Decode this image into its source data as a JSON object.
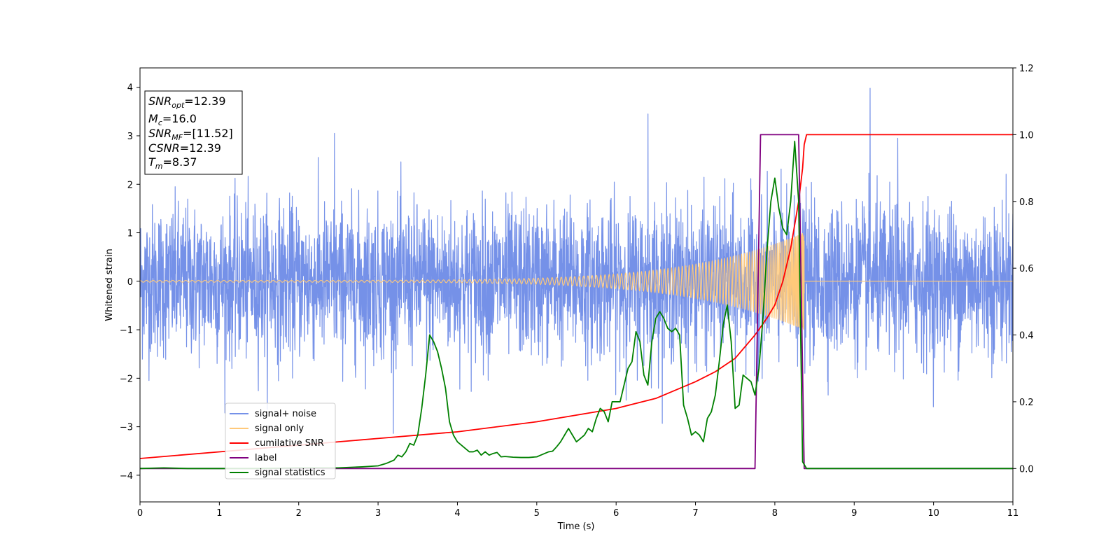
{
  "chart_data": {
    "type": "line",
    "xlabel": "Time (s)",
    "ylabel": "Whitened strain",
    "xlim": [
      0,
      11
    ],
    "ylim": [
      -4.55,
      4.4
    ],
    "y2lim": [
      -0.1,
      1.2
    ],
    "x_ticks": [
      "0",
      "1",
      "2",
      "3",
      "4",
      "5",
      "6",
      "7",
      "8",
      "9",
      "10",
      "11"
    ],
    "y_ticks": [
      "4",
      "3",
      "2",
      "1",
      "0",
      "−1",
      "−2",
      "−3",
      "−4"
    ],
    "y_tick_values": [
      4,
      3,
      2,
      1,
      0,
      -1,
      -2,
      -3,
      -4
    ],
    "y2_ticks": [
      "1.2",
      "1.0",
      "0.8",
      "0.6",
      "0.4",
      "0.2",
      "0.0"
    ],
    "y2_tick_values": [
      1.2,
      1.0,
      0.8,
      0.6,
      0.4,
      0.2,
      0.0
    ],
    "grid": false,
    "legend_position": "lower-left",
    "annotation": {
      "lines": [
        {
          "main": "SNR",
          "sub": "opt",
          "value": "=12.39"
        },
        {
          "main": "M",
          "sub": "c",
          "value": "=16.0"
        },
        {
          "main": "SNR",
          "sub": "MF",
          "value": "=[11.52]"
        },
        {
          "main": "CSNR",
          "sub": "",
          "value": "=12.39"
        },
        {
          "main": "T",
          "sub": "m",
          "value": "=8.37"
        }
      ]
    },
    "series": [
      {
        "name": "signal+ noise",
        "color": "#7591e8",
        "axis": "left",
        "kind": "noise",
        "noise_std": 0.78,
        "range": [
          0,
          11
        ],
        "note_peaks": [
          [
            9.2,
            3.98
          ],
          [
            6.4,
            3.45
          ],
          [
            9.55,
            2.95
          ],
          [
            2.45,
            3.05
          ]
        ]
      },
      {
        "name": "signal only",
        "color": "#ffc97a",
        "axis": "left",
        "kind": "chirp",
        "range": [
          0,
          8.37
        ],
        "amplitude_start": 0.02,
        "amplitude_end": 1.0
      },
      {
        "name": "cumilative SNR",
        "color": "#ff0000",
        "axis": "right",
        "x": [
          0,
          1,
          2,
          3,
          4,
          5,
          5.5,
          6,
          6.5,
          7,
          7.25,
          7.5,
          7.75,
          7.9,
          8.0,
          8.1,
          8.2,
          8.3,
          8.35,
          8.37,
          8.4,
          11
        ],
        "y": [
          0.03,
          0.05,
          0.07,
          0.09,
          0.11,
          0.14,
          0.16,
          0.18,
          0.21,
          0.26,
          0.29,
          0.33,
          0.4,
          0.45,
          0.49,
          0.56,
          0.66,
          0.8,
          0.9,
          0.97,
          1.0,
          1.0
        ]
      },
      {
        "name": "label",
        "color": "#800080",
        "axis": "right",
        "x": [
          0,
          7.75,
          7.82,
          8.3,
          8.37,
          11
        ],
        "y": [
          0.0,
          0.0,
          1.0,
          1.0,
          0.0,
          0.0
        ]
      },
      {
        "name": "signal statistics",
        "color": "#008000",
        "axis": "right",
        "x": [
          0,
          0.3,
          0.6,
          1.0,
          1.5,
          2.0,
          2.5,
          2.8,
          3.0,
          3.1,
          3.2,
          3.25,
          3.3,
          3.35,
          3.4,
          3.45,
          3.5,
          3.55,
          3.6,
          3.65,
          3.7,
          3.75,
          3.8,
          3.85,
          3.9,
          3.95,
          4.0,
          4.05,
          4.1,
          4.15,
          4.2,
          4.25,
          4.3,
          4.35,
          4.4,
          4.45,
          4.5,
          4.55,
          4.6,
          4.65,
          4.7,
          4.8,
          4.9,
          5.0,
          5.05,
          5.1,
          5.15,
          5.2,
          5.25,
          5.3,
          5.35,
          5.4,
          5.45,
          5.5,
          5.55,
          5.6,
          5.65,
          5.7,
          5.75,
          5.8,
          5.85,
          5.9,
          5.95,
          6.0,
          6.05,
          6.1,
          6.15,
          6.2,
          6.25,
          6.3,
          6.35,
          6.4,
          6.45,
          6.5,
          6.55,
          6.6,
          6.65,
          6.7,
          6.75,
          6.8,
          6.85,
          6.9,
          6.95,
          7.0,
          7.05,
          7.1,
          7.15,
          7.2,
          7.25,
          7.3,
          7.35,
          7.4,
          7.45,
          7.5,
          7.55,
          7.6,
          7.65,
          7.7,
          7.75,
          7.8,
          7.85,
          7.9,
          7.95,
          8.0,
          8.05,
          8.1,
          8.15,
          8.2,
          8.25,
          8.3,
          8.35,
          8.4,
          8.45,
          8.5,
          8.6,
          9.0,
          10.0,
          11.0
        ],
        "y": [
          0.0,
          0.002,
          0.0,
          0.0,
          0.0,
          0.002,
          0.002,
          0.005,
          0.008,
          0.015,
          0.025,
          0.04,
          0.035,
          0.05,
          0.075,
          0.07,
          0.1,
          0.18,
          0.28,
          0.4,
          0.38,
          0.35,
          0.3,
          0.24,
          0.14,
          0.1,
          0.08,
          0.07,
          0.06,
          0.05,
          0.05,
          0.055,
          0.04,
          0.05,
          0.04,
          0.045,
          0.048,
          0.035,
          0.036,
          0.035,
          0.034,
          0.033,
          0.033,
          0.035,
          0.04,
          0.045,
          0.05,
          0.052,
          0.065,
          0.08,
          0.1,
          0.12,
          0.1,
          0.08,
          0.09,
          0.1,
          0.12,
          0.11,
          0.15,
          0.18,
          0.17,
          0.14,
          0.2,
          0.2,
          0.2,
          0.25,
          0.3,
          0.32,
          0.41,
          0.38,
          0.28,
          0.25,
          0.38,
          0.45,
          0.47,
          0.45,
          0.42,
          0.41,
          0.42,
          0.4,
          0.19,
          0.15,
          0.1,
          0.11,
          0.1,
          0.08,
          0.15,
          0.17,
          0.22,
          0.32,
          0.43,
          0.49,
          0.38,
          0.18,
          0.19,
          0.28,
          0.27,
          0.26,
          0.22,
          0.3,
          0.45,
          0.65,
          0.8,
          0.87,
          0.78,
          0.72,
          0.7,
          0.8,
          0.98,
          0.8,
          0.02,
          0.0,
          0.0,
          0.0,
          0.0,
          0.0,
          0.0,
          0.0
        ]
      }
    ]
  }
}
